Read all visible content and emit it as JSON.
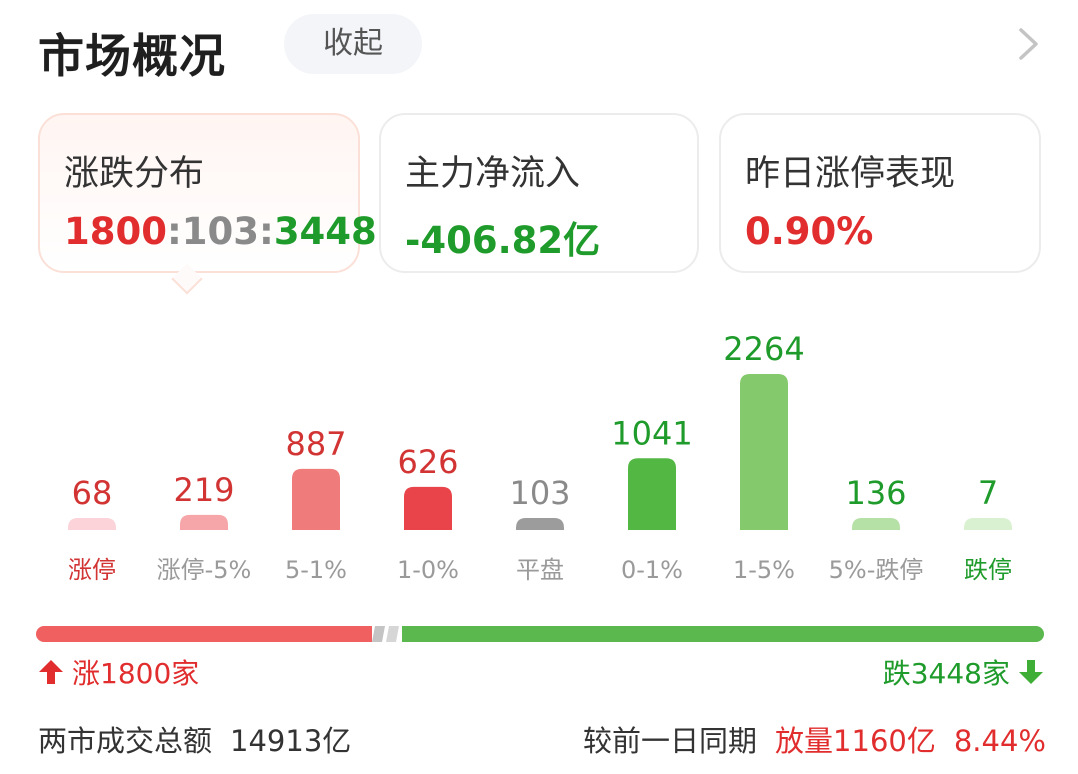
{
  "header": {
    "title": "市场概况",
    "collapse_label": "收起"
  },
  "cards": [
    {
      "label": "涨跌分布",
      "up": "1800",
      "flat": "103",
      "down": "3448",
      "sep": ":"
    },
    {
      "label": "主力净流入",
      "value": "-406.82亿"
    },
    {
      "label": "昨日涨停表现",
      "value": "0.90%"
    }
  ],
  "colors": {
    "red": "#e12d2d",
    "green": "#1e9b2a",
    "gray": "#8a8a8a"
  },
  "chart_data": {
    "type": "bar",
    "categories": [
      "涨停",
      "涨停-5%",
      "5-1%",
      "1-0%",
      "平盘",
      "0-1%",
      "1-5%",
      "5%-跌停",
      "跌停"
    ],
    "values": [
      68,
      219,
      887,
      626,
      103,
      1041,
      2264,
      136,
      7
    ],
    "bar_colors": [
      "#fcd3d8",
      "#f6a5a8",
      "#ef7b7b",
      "#e8444a",
      "#9c9c9c",
      "#52b743",
      "#84ca6c",
      "#b5e1a6",
      "#d9f0d1"
    ],
    "value_colors": [
      "#d23333",
      "#d23333",
      "#d23333",
      "#d23333",
      "#8a8a8a",
      "#1e9b2a",
      "#1e9b2a",
      "#1e9b2a",
      "#1e9b2a"
    ],
    "label_colors": [
      "#d23333",
      "#9a9a9a",
      "#9a9a9a",
      "#9a9a9a",
      "#9a9a9a",
      "#9a9a9a",
      "#9a9a9a",
      "#9a9a9a",
      "#1e9b2a"
    ]
  },
  "summary": {
    "up_label": "涨1800家",
    "down_label": "跌3448家"
  },
  "footer": {
    "turnover_label": "两市成交总额",
    "turnover_value": "14913亿",
    "compare_label": "较前一日同期",
    "volume_change": "放量1160亿",
    "pct_change": "8.44%"
  }
}
